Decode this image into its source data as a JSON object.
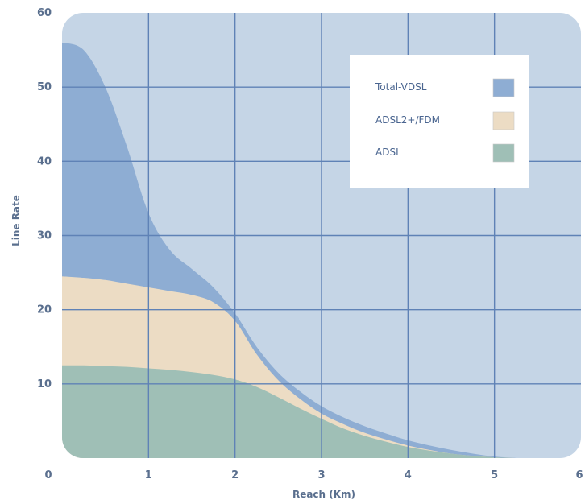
{
  "chart_data": {
    "type": "area",
    "xlabel": "Reach (Km)",
    "ylabel": "Line Rate",
    "xlim": [
      0,
      6
    ],
    "ylim": [
      0,
      60
    ],
    "x_ticks": [
      "0",
      "1",
      "2",
      "3",
      "4",
      "5",
      "6"
    ],
    "y_ticks": [
      "0",
      "10",
      "20",
      "30",
      "40",
      "50",
      "60"
    ],
    "grid": true,
    "legend_position": "top-right",
    "x": [
      0,
      0.25,
      0.5,
      0.75,
      1,
      1.25,
      1.5,
      1.75,
      2,
      2.25,
      2.5,
      2.75,
      3,
      3.25,
      3.5,
      3.75,
      4,
      4.25,
      4.5,
      4.75,
      5,
      5.25
    ],
    "series": [
      {
        "name": "Total-VDSL",
        "color": "#8eadd3",
        "values": [
          56,
          55,
          50,
          42,
          33,
          28,
          25.5,
          23,
          19.5,
          15,
          11.5,
          9,
          7,
          5.5,
          4.3,
          3.3,
          2.4,
          1.7,
          1.1,
          0.6,
          0.2,
          0
        ]
      },
      {
        "name": "ADSL2+/FDM",
        "color": "#ecdcc4",
        "values": [
          24.5,
          24.3,
          24,
          23.5,
          23,
          22.5,
          22,
          21,
          18.5,
          14,
          10.5,
          8,
          6,
          4.6,
          3.4,
          2.5,
          1.7,
          1.1,
          0.6,
          0.3,
          0.1,
          0
        ]
      },
      {
        "name": "ADSL",
        "color": "#9fbfb6",
        "values": [
          12.5,
          12.5,
          12.4,
          12.3,
          12.1,
          11.9,
          11.6,
          11.2,
          10.6,
          9.6,
          8.2,
          6.7,
          5.3,
          4,
          3,
          2.2,
          1.5,
          1,
          0.6,
          0.3,
          0.1,
          0
        ]
      }
    ]
  }
}
